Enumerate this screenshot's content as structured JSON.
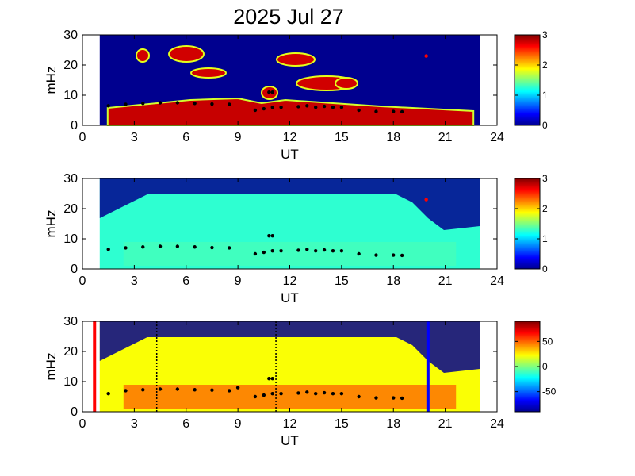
{
  "title": "2025 Jul 27",
  "colors": {
    "background": "#ffffff",
    "fill_low": "#00008f",
    "fill_high": "#800000",
    "peak_marker": "#000000",
    "red_marker": "#ff0000",
    "blue_marker": "#0000ff"
  },
  "chart_data": [
    {
      "type": "heatmap",
      "xlabel": "UT",
      "ylabel": "mHz",
      "xlim": [
        0,
        24
      ],
      "ylim": [
        0,
        30
      ],
      "xticks": [
        0,
        3,
        6,
        9,
        12,
        15,
        18,
        21,
        24
      ],
      "yticks": [
        0,
        10,
        20,
        30
      ],
      "data_range_x": [
        1.0,
        23.0
      ],
      "colorbar": {
        "range": [
          0,
          3
        ],
        "ticks": [
          0,
          1,
          2,
          3
        ],
        "colormap": "jet"
      },
      "peak_frequency": [
        [
          1.5,
          6.5
        ],
        [
          2.5,
          7.0
        ],
        [
          3.5,
          7.3
        ],
        [
          4.5,
          7.5
        ],
        [
          5.5,
          7.5
        ],
        [
          6.5,
          7.3
        ],
        [
          7.5,
          7.1
        ],
        [
          8.5,
          7.0
        ],
        [
          10.0,
          5.0
        ],
        [
          10.5,
          5.5
        ],
        [
          11.0,
          6.0
        ],
        [
          11.5,
          6.0
        ],
        [
          12.5,
          6.2
        ],
        [
          13.0,
          6.5
        ],
        [
          13.5,
          6.0
        ],
        [
          14.0,
          6.3
        ],
        [
          14.5,
          6.0
        ],
        [
          15.0,
          6.0
        ],
        [
          16.0,
          5.0
        ],
        [
          17.0,
          4.6
        ],
        [
          18.0,
          4.6
        ],
        [
          18.5,
          4.5
        ]
      ],
      "isolated_peaks": [
        [
          10.8,
          11.0
        ],
        [
          11.0,
          11.0
        ],
        [
          19.9,
          23.0
        ]
      ]
    },
    {
      "type": "heatmap",
      "xlabel": "UT",
      "ylabel": "mHz",
      "xlim": [
        0,
        24
      ],
      "ylim": [
        0,
        30
      ],
      "xticks": [
        0,
        3,
        6,
        9,
        12,
        15,
        18,
        21,
        24
      ],
      "yticks": [
        0,
        10,
        20,
        30
      ],
      "data_range_x": [
        1.0,
        23.0
      ],
      "colorbar": {
        "range": [
          0,
          3
        ],
        "ticks": [
          0,
          1,
          2,
          3
        ],
        "colormap": "jet"
      },
      "peak_frequency": [
        [
          1.5,
          6.5
        ],
        [
          2.5,
          7.0
        ],
        [
          3.5,
          7.3
        ],
        [
          4.5,
          7.5
        ],
        [
          5.5,
          7.5
        ],
        [
          6.5,
          7.3
        ],
        [
          7.5,
          7.1
        ],
        [
          8.5,
          7.0
        ],
        [
          10.0,
          5.0
        ],
        [
          10.5,
          5.5
        ],
        [
          11.0,
          6.0
        ],
        [
          11.5,
          6.0
        ],
        [
          12.5,
          6.2
        ],
        [
          13.0,
          6.5
        ],
        [
          13.5,
          6.0
        ],
        [
          14.0,
          6.3
        ],
        [
          14.5,
          6.0
        ],
        [
          15.0,
          6.0
        ],
        [
          16.0,
          5.0
        ],
        [
          17.0,
          4.6
        ],
        [
          18.0,
          4.6
        ],
        [
          18.5,
          4.5
        ]
      ],
      "isolated_peaks": [
        [
          10.8,
          11.0
        ],
        [
          11.0,
          11.0
        ],
        [
          19.9,
          23.0
        ]
      ]
    },
    {
      "type": "heatmap",
      "xlabel": "UT",
      "ylabel": "mHz",
      "xlim": [
        0,
        24
      ],
      "ylim": [
        0,
        30
      ],
      "xticks": [
        0,
        3,
        6,
        9,
        12,
        15,
        18,
        21,
        24
      ],
      "yticks": [
        0,
        10,
        20,
        30
      ],
      "data_range_x": [
        1.0,
        23.0
      ],
      "colorbar": {
        "range": [
          -90,
          90
        ],
        "ticks": [
          50,
          0,
          -50
        ],
        "colormap": "jet"
      },
      "peak_frequency": [
        [
          1.5,
          6.0
        ],
        [
          2.5,
          7.0
        ],
        [
          3.5,
          7.3
        ],
        [
          4.5,
          7.5
        ],
        [
          5.5,
          7.5
        ],
        [
          6.5,
          7.3
        ],
        [
          7.5,
          7.2
        ],
        [
          8.5,
          7.0
        ],
        [
          10.0,
          5.0
        ],
        [
          10.5,
          5.5
        ],
        [
          11.0,
          6.0
        ],
        [
          11.5,
          6.0
        ],
        [
          12.5,
          6.2
        ],
        [
          13.0,
          6.5
        ],
        [
          13.5,
          6.0
        ],
        [
          14.0,
          6.3
        ],
        [
          14.5,
          6.0
        ],
        [
          15.0,
          6.0
        ],
        [
          16.0,
          5.0
        ],
        [
          17.0,
          4.6
        ],
        [
          18.0,
          4.6
        ],
        [
          18.5,
          4.5
        ]
      ],
      "isolated_peaks": [
        [
          9.0,
          8.0
        ],
        [
          10.8,
          11.0
        ],
        [
          11.0,
          11.0
        ]
      ],
      "vertical_markers": [
        {
          "x": 0.7,
          "style": "solid",
          "color": "#ff0000"
        },
        {
          "x": 4.3,
          "style": "dotted",
          "color": "#000000"
        },
        {
          "x": 11.2,
          "style": "dotted",
          "color": "#000000"
        },
        {
          "x": 20.0,
          "style": "solid",
          "color": "#0000ff"
        }
      ]
    }
  ]
}
